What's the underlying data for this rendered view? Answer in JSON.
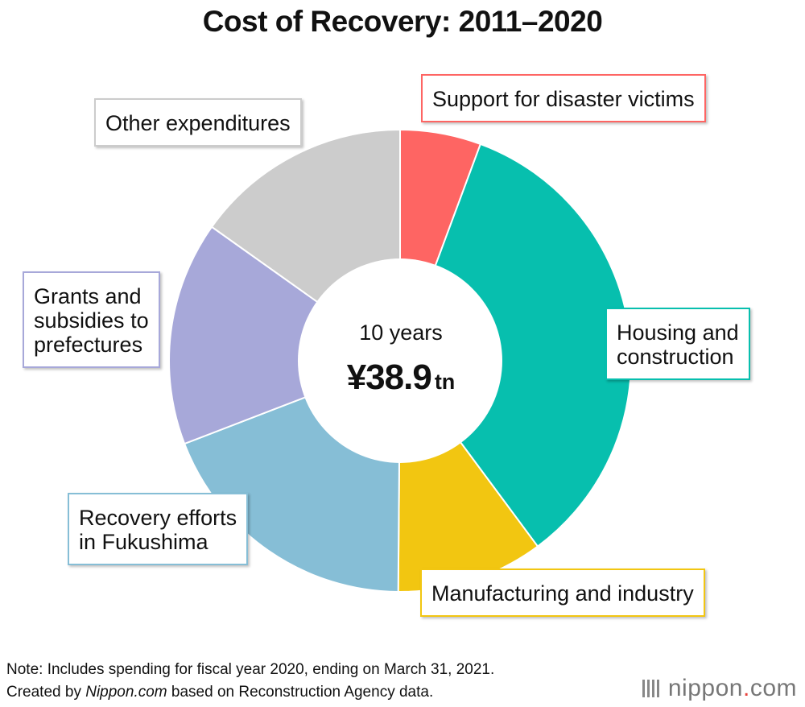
{
  "chart_data": {
    "type": "pie",
    "title": "Cost of Recovery: 2011–2020",
    "categories": [
      "Support for disaster victims",
      "Housing and construction",
      "Manufacturing and industry",
      "Recovery efforts in Fukushima",
      "Grants and subsidies to prefectures",
      "Other expenditures"
    ],
    "values": [
      2.2,
      13.3,
      4.0,
      7.4,
      6.1,
      5.9
    ],
    "colors": [
      "#fe6563",
      "#07bfae",
      "#f2c611",
      "#86bed6",
      "#a7a8d9",
      "#cccccc"
    ],
    "center_label": {
      "line1": "10 years",
      "value": "¥38.9",
      "unit": "tn"
    },
    "labels": {
      "support": "Support for disaster victims",
      "housing_1": "Housing and",
      "housing_2": "construction",
      "manufacturing": "Manufacturing and industry",
      "fukushima_1": "Recovery efforts",
      "fukushima_2": "in Fukushima",
      "grants_1": "Grants and",
      "grants_2": "subsidies to",
      "grants_3": "prefectures",
      "other": "Other expenditures"
    }
  },
  "footer": {
    "note": "Note: Includes spending for fiscal year 2020, ending on March 31, 2021.",
    "credit_prefix": "Created by ",
    "credit_source": "Nippon.com",
    "credit_suffix": " based on Reconstruction Agency data."
  },
  "logo": {
    "name": "nippon",
    "dot": ".",
    "suffix": "com"
  }
}
